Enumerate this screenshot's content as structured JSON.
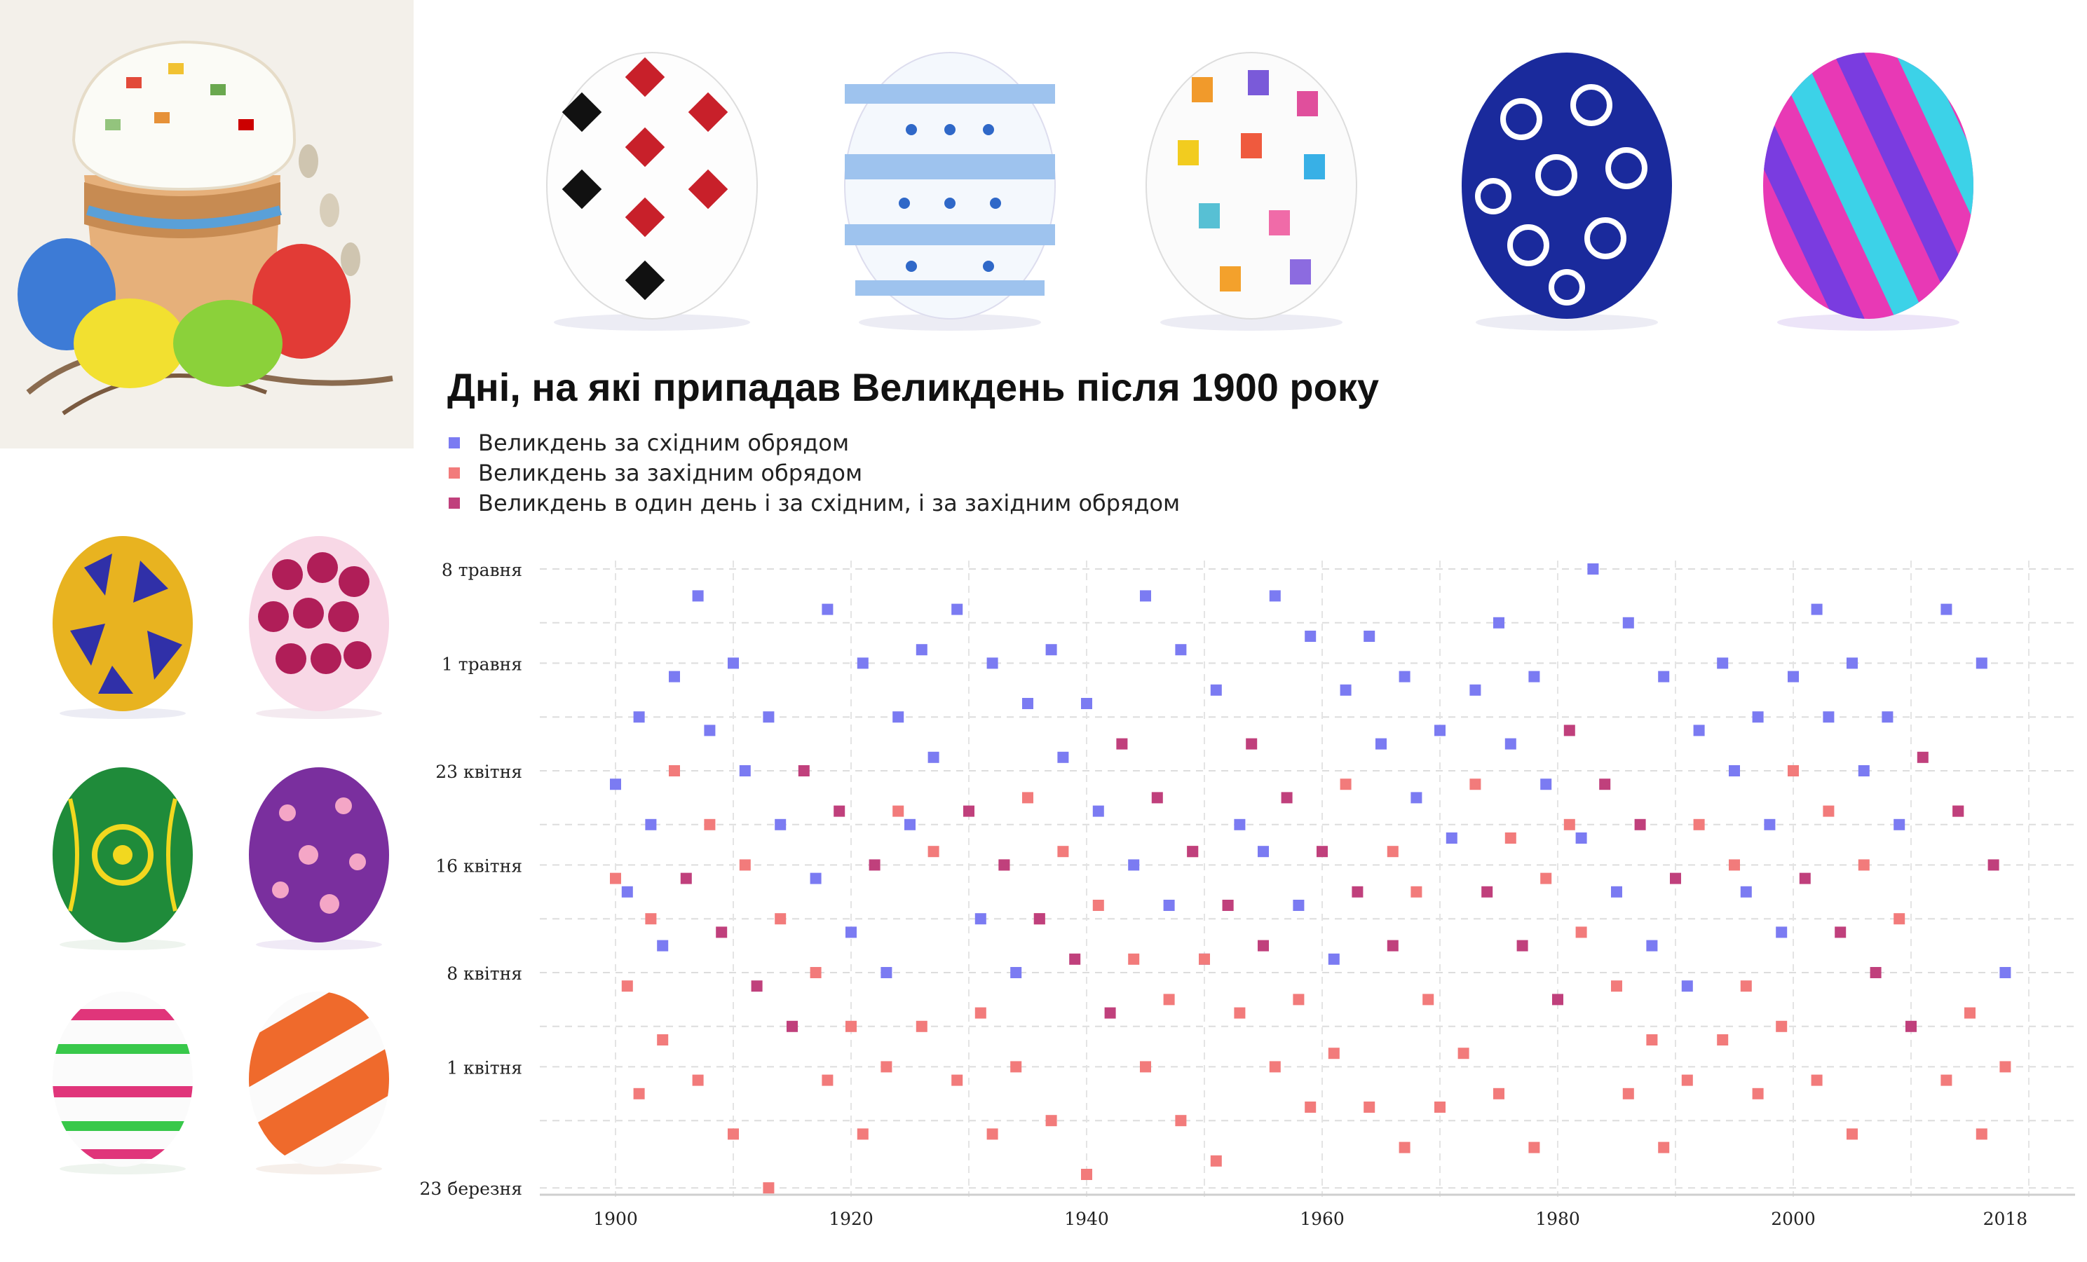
{
  "chart_data": {
    "type": "scatter",
    "title": "Дні, на які припадав Великдень після 1900 року",
    "legend": [
      {
        "key": "orthodox",
        "label": "Великдень за східним обрядом",
        "color": "#7b7bf2"
      },
      {
        "key": "western",
        "label": "Великдень за західним обрядом",
        "color": "#f27b7b"
      },
      {
        "key": "both",
        "label": "Великдень в один день і за східним, і за західним обрядом",
        "color": "#c0407c"
      }
    ],
    "x_ticks": [
      "1900",
      "1920",
      "1940",
      "1960",
      "1980",
      "2000",
      "2018"
    ],
    "y_ticks": [
      "8 травня",
      "1 травня",
      "23 квітня",
      "16 квітня",
      "8 квітня",
      "1 квітня",
      "23 березня"
    ],
    "xlim": [
      1900,
      2018
    ],
    "ylim": [
      "22 березня",
      "8 травня"
    ],
    "grid": true,
    "legend_position": "top-left",
    "series": [
      {
        "name": "Великдень за східним обрядом",
        "key": "orthodox",
        "points": [
          [
            "1900",
            "04-22"
          ],
          [
            "1901",
            "04-14"
          ],
          [
            "1902",
            "04-27"
          ],
          [
            "1903",
            "04-19"
          ],
          [
            "1904",
            "04-10"
          ],
          [
            "1905",
            "04-30"
          ],
          [
            "1907",
            "05-06"
          ],
          [
            "1908",
            "04-26"
          ],
          [
            "1910",
            "05-01"
          ],
          [
            "1911",
            "04-23"
          ],
          [
            "1913",
            "04-27"
          ],
          [
            "1914",
            "04-19"
          ],
          [
            "1917",
            "04-15"
          ],
          [
            "1918",
            "05-05"
          ],
          [
            "1920",
            "04-11"
          ],
          [
            "1921",
            "05-01"
          ],
          [
            "1923",
            "04-08"
          ],
          [
            "1924",
            "04-27"
          ],
          [
            "1925",
            "04-19"
          ],
          [
            "1927",
            "04-24"
          ],
          [
            "1929",
            "05-05"
          ],
          [
            "1926",
            "05-02"
          ],
          [
            "1931",
            "04-12"
          ],
          [
            "1932",
            "05-01"
          ],
          [
            "1934",
            "04-08"
          ],
          [
            "1935",
            "04-28"
          ],
          [
            "1937",
            "05-02"
          ],
          [
            "1938",
            "04-24"
          ],
          [
            "1940",
            "04-28"
          ],
          [
            "1941",
            "04-20"
          ],
          [
            "1944",
            "04-16"
          ],
          [
            "1945",
            "05-06"
          ],
          [
            "1947",
            "04-13"
          ],
          [
            "1948",
            "05-02"
          ],
          [
            "1950",
            "04-09"
          ],
          [
            "1951",
            "04-29"
          ],
          [
            "1953",
            "04-19"
          ],
          [
            "1955",
            "04-17"
          ],
          [
            "1956",
            "05-06"
          ],
          [
            "1958",
            "04-13"
          ],
          [
            "1959",
            "05-03"
          ],
          [
            "1961",
            "04-09"
          ],
          [
            "1962",
            "04-29"
          ],
          [
            "1964",
            "05-03"
          ],
          [
            "1965",
            "04-25"
          ],
          [
            "1967",
            "04-30"
          ],
          [
            "1968",
            "04-21"
          ],
          [
            "1970",
            "04-26"
          ],
          [
            "1971",
            "04-18"
          ],
          [
            "1973",
            "04-29"
          ],
          [
            "1975",
            "05-04"
          ],
          [
            "1976",
            "04-25"
          ],
          [
            "1978",
            "04-30"
          ],
          [
            "1979",
            "04-22"
          ],
          [
            "1982",
            "04-18"
          ],
          [
            "1983",
            "05-08"
          ],
          [
            "1985",
            "04-14"
          ],
          [
            "1986",
            "05-04"
          ],
          [
            "1988",
            "04-10"
          ],
          [
            "1989",
            "04-30"
          ],
          [
            "1991",
            "04-07"
          ],
          [
            "1992",
            "04-26"
          ],
          [
            "1994",
            "05-01"
          ],
          [
            "1995",
            "04-23"
          ],
          [
            "1996",
            "04-14"
          ],
          [
            "1997",
            "04-27"
          ],
          [
            "1998",
            "04-19"
          ],
          [
            "1999",
            "04-11"
          ],
          [
            "2000",
            "04-30"
          ],
          [
            "2002",
            "05-05"
          ],
          [
            "2003",
            "04-27"
          ],
          [
            "2005",
            "05-01"
          ],
          [
            "2006",
            "04-23"
          ],
          [
            "2009",
            "04-19"
          ],
          [
            "2013",
            "05-05"
          ],
          [
            "2016",
            "05-01"
          ],
          [
            "2008",
            "04-27"
          ],
          [
            "2018",
            "04-08"
          ]
        ]
      },
      {
        "name": "Великдень за західним обрядом",
        "key": "western",
        "points": [
          [
            "1900",
            "04-15"
          ],
          [
            "1901",
            "04-07"
          ],
          [
            "1902",
            "03-30"
          ],
          [
            "1903",
            "04-12"
          ],
          [
            "1904",
            "04-03"
          ],
          [
            "1905",
            "04-23"
          ],
          [
            "1907",
            "03-31"
          ],
          [
            "1908",
            "04-19"
          ],
          [
            "1910",
            "03-27"
          ],
          [
            "1911",
            "04-16"
          ],
          [
            "1913",
            "03-23"
          ],
          [
            "1914",
            "04-12"
          ],
          [
            "1917",
            "04-08"
          ],
          [
            "1918",
            "03-31"
          ],
          [
            "1920",
            "04-04"
          ],
          [
            "1921",
            "03-27"
          ],
          [
            "1923",
            "04-01"
          ],
          [
            "1924",
            "04-20"
          ],
          [
            "1926",
            "04-04"
          ],
          [
            "1927",
            "04-17"
          ],
          [
            "1929",
            "03-31"
          ],
          [
            "1931",
            "04-05"
          ],
          [
            "1932",
            "03-27"
          ],
          [
            "1933",
            "04-16"
          ],
          [
            "1934",
            "04-01"
          ],
          [
            "1935",
            "04-21"
          ],
          [
            "1936",
            "04-12"
          ],
          [
            "1937",
            "03-28"
          ],
          [
            "1938",
            "04-17"
          ],
          [
            "1940",
            "03-24"
          ],
          [
            "1941",
            "04-13"
          ],
          [
            "1944",
            "04-09"
          ],
          [
            "1945",
            "04-01"
          ],
          [
            "1947",
            "04-06"
          ],
          [
            "1948",
            "03-28"
          ],
          [
            "1949",
            "04-17"
          ],
          [
            "1950",
            "04-09"
          ],
          [
            "1951",
            "03-25"
          ],
          [
            "1952",
            "04-13"
          ],
          [
            "1953",
            "04-05"
          ],
          [
            "1956",
            "04-01"
          ],
          [
            "1958",
            "04-06"
          ],
          [
            "1959",
            "03-29"
          ],
          [
            "1961",
            "04-02"
          ],
          [
            "1962",
            "04-22"
          ],
          [
            "1964",
            "03-29"
          ],
          [
            "1966",
            "04-17"
          ],
          [
            "1967",
            "03-26"
          ],
          [
            "1968",
            "04-14"
          ],
          [
            "1969",
            "04-06"
          ],
          [
            "1970",
            "03-29"
          ],
          [
            "1972",
            "04-02"
          ],
          [
            "1973",
            "04-22"
          ],
          [
            "1975",
            "03-30"
          ],
          [
            "1976",
            "04-18"
          ],
          [
            "1978",
            "03-26"
          ],
          [
            "1979",
            "04-15"
          ],
          [
            "1981",
            "04-19"
          ],
          [
            "1982",
            "04-11"
          ],
          [
            "1985",
            "04-07"
          ],
          [
            "1986",
            "03-30"
          ],
          [
            "1988",
            "04-03"
          ],
          [
            "1989",
            "03-26"
          ],
          [
            "1991",
            "03-31"
          ],
          [
            "1992",
            "04-19"
          ],
          [
            "1994",
            "04-03"
          ],
          [
            "1995",
            "04-16"
          ],
          [
            "1996",
            "04-07"
          ],
          [
            "1997",
            "03-30"
          ],
          [
            "1999",
            "04-04"
          ],
          [
            "2000",
            "04-23"
          ],
          [
            "2002",
            "03-31"
          ],
          [
            "2003",
            "04-20"
          ],
          [
            "2005",
            "03-27"
          ],
          [
            "2006",
            "04-16"
          ],
          [
            "2009",
            "04-12"
          ],
          [
            "2013",
            "03-31"
          ],
          [
            "2014",
            "04-20"
          ],
          [
            "2015",
            "04-05"
          ],
          [
            "2016",
            "03-27"
          ],
          [
            "2018",
            "04-01"
          ]
        ]
      },
      {
        "name": "Великдень в один день і за східним, і за західним обрядом",
        "key": "both",
        "points": [
          [
            "1906",
            "04-15"
          ],
          [
            "1909",
            "04-11"
          ],
          [
            "1912",
            "04-07"
          ],
          [
            "1915",
            "04-04"
          ],
          [
            "1916",
            "04-23"
          ],
          [
            "1919",
            "04-20"
          ],
          [
            "1922",
            "04-16"
          ],
          [
            "1930",
            "04-20"
          ],
          [
            "1933",
            "04-16"
          ],
          [
            "1936",
            "04-12"
          ],
          [
            "1939",
            "04-09"
          ],
          [
            "1942",
            "04-05"
          ],
          [
            "1943",
            "04-25"
          ],
          [
            "1946",
            "04-21"
          ],
          [
            "1949",
            "04-17"
          ],
          [
            "1952",
            "04-13"
          ],
          [
            "1954",
            "04-25"
          ],
          [
            "1955",
            "04-10"
          ],
          [
            "1957",
            "04-21"
          ],
          [
            "1960",
            "04-17"
          ],
          [
            "1963",
            "04-14"
          ],
          [
            "1966",
            "04-10"
          ],
          [
            "1974",
            "04-14"
          ],
          [
            "1977",
            "04-10"
          ],
          [
            "1980",
            "04-06"
          ],
          [
            "1981",
            "04-26"
          ],
          [
            "1984",
            "04-22"
          ],
          [
            "1987",
            "04-19"
          ],
          [
            "1990",
            "04-15"
          ],
          [
            "2001",
            "04-15"
          ],
          [
            "2004",
            "04-11"
          ],
          [
            "2007",
            "04-08"
          ],
          [
            "2010",
            "04-04"
          ],
          [
            "2011",
            "04-24"
          ],
          [
            "2014",
            "04-20"
          ],
          [
            "2017",
            "04-16"
          ]
        ]
      }
    ]
  }
}
